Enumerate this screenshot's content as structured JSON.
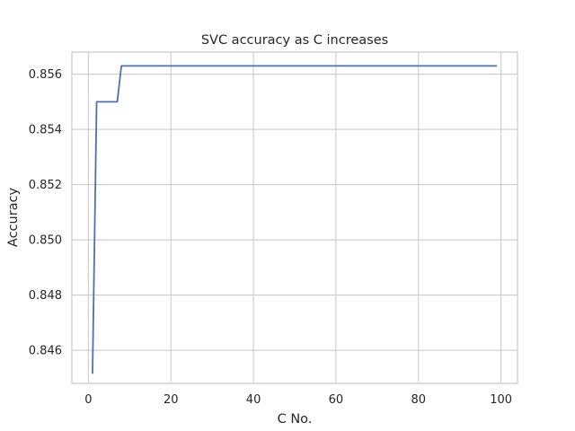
{
  "chart_data": {
    "type": "line",
    "title": "SVC accuracy as C increases",
    "xlabel": "C No.",
    "ylabel": "Accuracy",
    "xlim": [
      -4,
      104
    ],
    "ylim": [
      0.8448,
      0.8568
    ],
    "xticks": [
      0,
      20,
      40,
      60,
      80,
      100
    ],
    "xtick_labels": [
      "0",
      "20",
      "40",
      "60",
      "80",
      "100"
    ],
    "yticks": [
      0.846,
      0.848,
      0.85,
      0.852,
      0.854,
      0.856
    ],
    "ytick_labels": [
      "0.846",
      "0.848",
      "0.850",
      "0.852",
      "0.854",
      "0.856"
    ],
    "grid": true,
    "line_color": "#4c72b0",
    "series": [
      {
        "x": [
          1,
          2,
          3,
          4,
          5,
          6,
          7,
          8,
          9,
          10,
          20,
          30,
          40,
          50,
          60,
          70,
          80,
          90,
          99
        ],
        "y": [
          0.84515,
          0.855,
          0.855,
          0.855,
          0.855,
          0.855,
          0.855,
          0.8563,
          0.8563,
          0.8563,
          0.8563,
          0.8563,
          0.8563,
          0.8563,
          0.8563,
          0.8563,
          0.8563,
          0.8563,
          0.8563
        ]
      }
    ]
  }
}
